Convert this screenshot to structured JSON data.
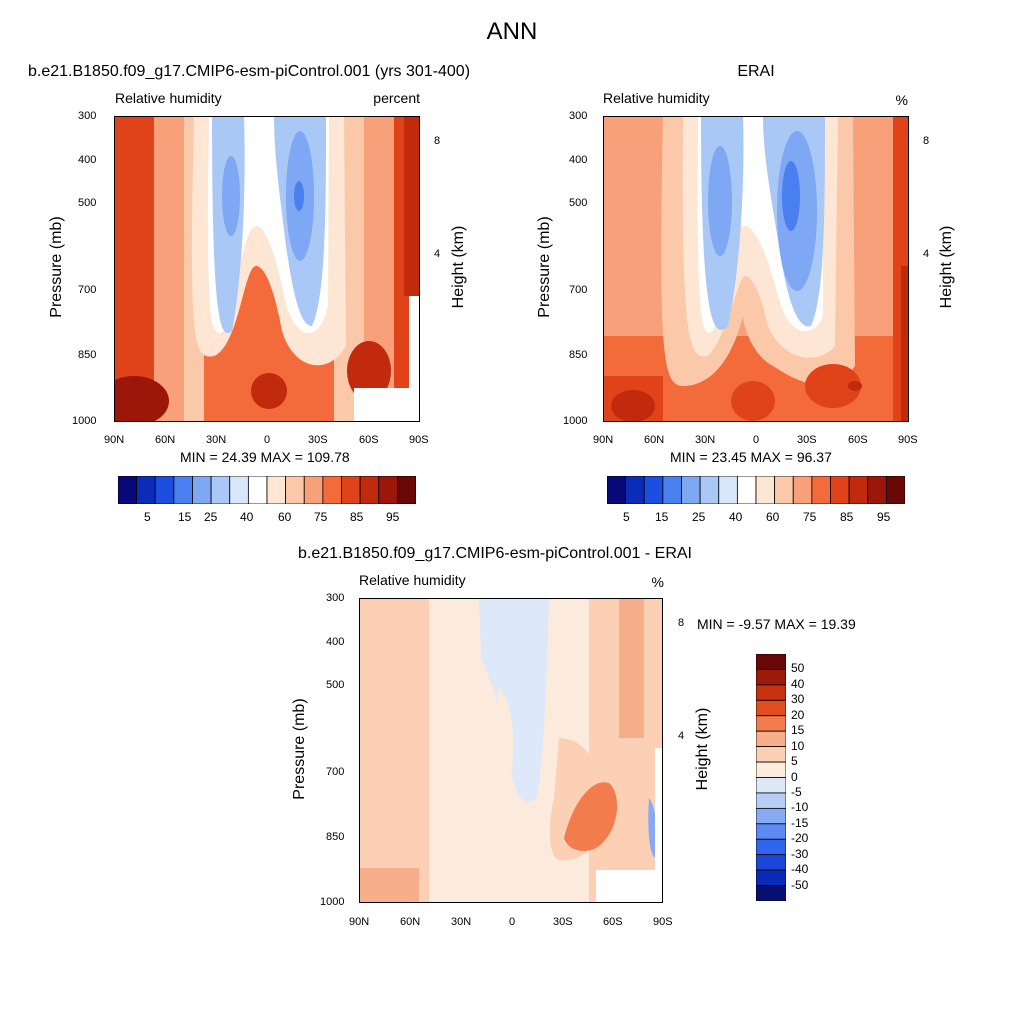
{
  "page": {
    "title": "ANN"
  },
  "colors": {
    "abs_scale": [
      "#08087a",
      "#0b2bb8",
      "#1c4fe0",
      "#4a7ff0",
      "#7ea7f4",
      "#aac8f5",
      "#d7e6f8",
      "#ffffff",
      "#fde6d3",
      "#fbc8aa",
      "#f8a07a",
      "#f36b3a",
      "#e0421a",
      "#c22a0e",
      "#9c160a",
      "#6a0808"
    ],
    "diff_scale": [
      "#071070",
      "#0a2bb8",
      "#1a47d9",
      "#2f66ef",
      "#5a8af2",
      "#86abf4",
      "#b6cdf6",
      "#dde8f9",
      "#fcebdc",
      "#fbd0b4",
      "#f7ae8a",
      "#f27c4e",
      "#e24d1f",
      "#c93010",
      "#9c1a0a",
      "#6a0808"
    ]
  },
  "chart_data": [
    {
      "type": "heatmap",
      "title": "b.e21.B1850.f09_g17.CMIP6-esm-piControl.001 (yrs 301-400)",
      "left_label": "Relative humidity",
      "right_label": "percent",
      "xlabel": "",
      "ylabel": "Pressure (mb)",
      "y2label": "Height (km)",
      "x_ticks": [
        "90N",
        "60N",
        "30N",
        "0",
        "30S",
        "60S",
        "90S"
      ],
      "y_ticks": [
        "300",
        "400",
        "500",
        "700",
        "850",
        "1000"
      ],
      "y2_ticks": [
        "8",
        "4"
      ],
      "stats": "MIN =  24.39  MAX = 109.78",
      "min": 24.39,
      "max": 109.78,
      "colorbar_labels": [
        "5",
        "15",
        "25",
        "40",
        "60",
        "75",
        "85",
        "95"
      ]
    },
    {
      "type": "heatmap",
      "title": "ERAI",
      "left_label": "Relative humidity",
      "right_label": "%",
      "xlabel": "",
      "ylabel": "Pressure (mb)",
      "y2label": "Height (km)",
      "x_ticks": [
        "90N",
        "60N",
        "30N",
        "0",
        "30S",
        "60S",
        "90S"
      ],
      "y_ticks": [
        "300",
        "400",
        "500",
        "700",
        "850",
        "1000"
      ],
      "y2_ticks": [
        "8",
        "4"
      ],
      "stats": "MIN =  23.45  MAX =  96.37",
      "min": 23.45,
      "max": 96.37,
      "colorbar_labels": [
        "5",
        "15",
        "25",
        "40",
        "60",
        "75",
        "85",
        "95"
      ]
    },
    {
      "type": "heatmap",
      "title": "b.e21.B1850.f09_g17.CMIP6-esm-piControl.001 - ERAI",
      "left_label": "Relative humidity",
      "right_label": "%",
      "xlabel": "",
      "ylabel": "Pressure (mb)",
      "y2label": "Height (km)",
      "x_ticks": [
        "90N",
        "60N",
        "30N",
        "0",
        "30S",
        "60S",
        "90S"
      ],
      "y_ticks": [
        "300",
        "400",
        "500",
        "700",
        "850",
        "1000"
      ],
      "y2_ticks": [
        "8",
        "4"
      ],
      "stats": "MIN =  -9.57  MAX =  19.39",
      "min": -9.57,
      "max": 19.39,
      "colorbar_labels": [
        "50",
        "40",
        "30",
        "20",
        "15",
        "10",
        "5",
        "0",
        "-5",
        "-10",
        "-15",
        "-20",
        "-30",
        "-40",
        "-50"
      ]
    }
  ]
}
